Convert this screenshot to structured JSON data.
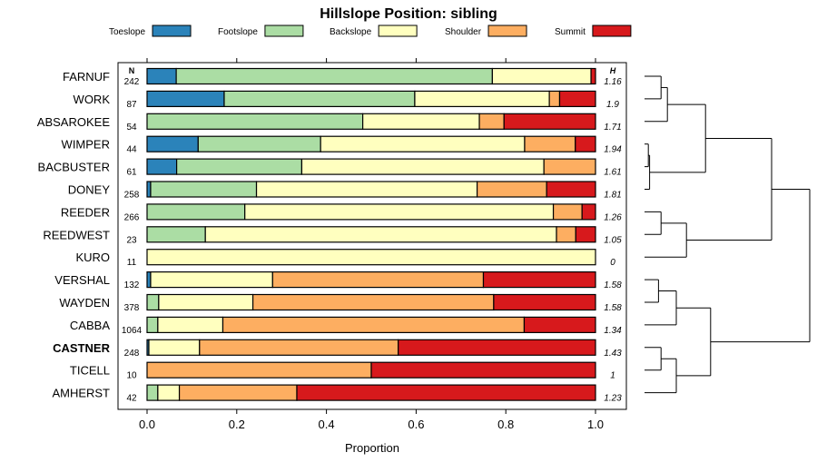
{
  "chart_data": {
    "type": "bar",
    "stacked": true,
    "orientation": "horizontal",
    "title": "Hillslope Position: sibling",
    "xlabel": "Proportion",
    "xlim": [
      0,
      1
    ],
    "xticks": [
      "0.0",
      "0.2",
      "0.4",
      "0.6",
      "0.8",
      "1.0"
    ],
    "n_header": "N",
    "h_header": "H",
    "classes": [
      {
        "name": "Toeslope",
        "color": "#2b83ba"
      },
      {
        "name": "Footslope",
        "color": "#abdda4"
      },
      {
        "name": "Backslope",
        "color": "#ffffbf"
      },
      {
        "name": "Shoulder",
        "color": "#fdae61"
      },
      {
        "name": "Summit",
        "color": "#d7191c"
      }
    ],
    "rows": [
      {
        "label": "FARNUF",
        "n": "242",
        "h": "1.16",
        "bold": false,
        "values": [
          0.065,
          0.705,
          0.22,
          0.0,
          0.01
        ]
      },
      {
        "label": "WORK",
        "n": "87",
        "h": "1.9",
        "bold": false,
        "values": [
          0.172,
          0.425,
          0.3,
          0.023,
          0.08
        ]
      },
      {
        "label": "ABSAROKEE",
        "n": "54",
        "h": "1.71",
        "bold": false,
        "values": [
          0.0,
          0.481,
          0.26,
          0.055,
          0.204
        ]
      },
      {
        "label": "WIMPER",
        "n": "44",
        "h": "1.94",
        "bold": false,
        "values": [
          0.114,
          0.273,
          0.455,
          0.113,
          0.045
        ]
      },
      {
        "label": "BACBUSTER",
        "n": "61",
        "h": "1.61",
        "bold": false,
        "values": [
          0.066,
          0.279,
          0.54,
          0.115,
          0.0
        ]
      },
      {
        "label": "DONEY",
        "n": "258",
        "h": "1.81",
        "bold": false,
        "values": [
          0.008,
          0.236,
          0.492,
          0.155,
          0.109
        ]
      },
      {
        "label": "REEDER",
        "n": "266",
        "h": "1.26",
        "bold": false,
        "values": [
          0.0,
          0.218,
          0.688,
          0.064,
          0.03
        ]
      },
      {
        "label": "REEDWEST",
        "n": "23",
        "h": "1.05",
        "bold": false,
        "values": [
          0.0,
          0.13,
          0.783,
          0.043,
          0.044
        ]
      },
      {
        "label": "KURO",
        "n": "11",
        "h": "0",
        "bold": false,
        "values": [
          0.0,
          0.0,
          1.0,
          0.0,
          0.0
        ]
      },
      {
        "label": "VERSHAL",
        "n": "132",
        "h": "1.58",
        "bold": false,
        "values": [
          0.008,
          0.0,
          0.272,
          0.47,
          0.25
        ]
      },
      {
        "label": "WAYDEN",
        "n": "378",
        "h": "1.58",
        "bold": false,
        "values": [
          0.0,
          0.026,
          0.21,
          0.537,
          0.227
        ]
      },
      {
        "label": "CABBA",
        "n": "1064",
        "h": "1.34",
        "bold": false,
        "values": [
          0.0,
          0.024,
          0.145,
          0.672,
          0.159
        ]
      },
      {
        "label": "CASTNER",
        "n": "248",
        "h": "1.43",
        "bold": true,
        "values": [
          0.004,
          0.0,
          0.113,
          0.443,
          0.44
        ]
      },
      {
        "label": "TICELL",
        "n": "10",
        "h": "1",
        "bold": false,
        "values": [
          0.0,
          0.0,
          0.0,
          0.5,
          0.5
        ]
      },
      {
        "label": "AMHERST",
        "n": "42",
        "h": "1.23",
        "bold": false,
        "values": [
          0.0,
          0.024,
          0.048,
          0.262,
          0.666
        ]
      }
    ],
    "dendrogram": [
      {
        "left": "FARNUF",
        "right": "WORK",
        "height": 0.13
      },
      {
        "left": "WIMPER",
        "right": "BACBUSTER",
        "height": 0.03
      },
      {
        "left": "merge:WIMPER+BACBUSTER",
        "right": "DONEY",
        "height": 0.04
      },
      {
        "left": "merge:FARNUF+WORK",
        "right": "ABSAROKEE",
        "height": 0.18
      },
      {
        "left": "merge:ABSAROKEE..",
        "right": "merge:WIMPER..DONEY",
        "height": 0.48
      },
      {
        "left": "REEDER",
        "right": "REEDWEST",
        "height": 0.13
      },
      {
        "left": "merge:REEDER+REEDWEST",
        "right": "KURO",
        "height": 0.33
      },
      {
        "left": "merge:upper",
        "right": "merge:REEDER..KURO",
        "height": 1.0
      },
      {
        "left": "VERSHAL",
        "right": "WAYDEN",
        "height": 0.11
      },
      {
        "left": "merge:VERSHAL+WAYDEN",
        "right": "CABBA",
        "height": 0.25
      },
      {
        "left": "CASTNER",
        "right": "TICELL",
        "height": 0.13
      },
      {
        "left": "merge:CASTNER+TICELL",
        "right": "AMHERST",
        "height": 0.25
      },
      {
        "left": "merge:VERSHAL..CABBA",
        "right": "merge:CASTNER..AMHERST",
        "height": 0.52
      },
      {
        "left": "merge:all-upper",
        "right": "merge:all-lower",
        "height": 1.3
      }
    ]
  }
}
